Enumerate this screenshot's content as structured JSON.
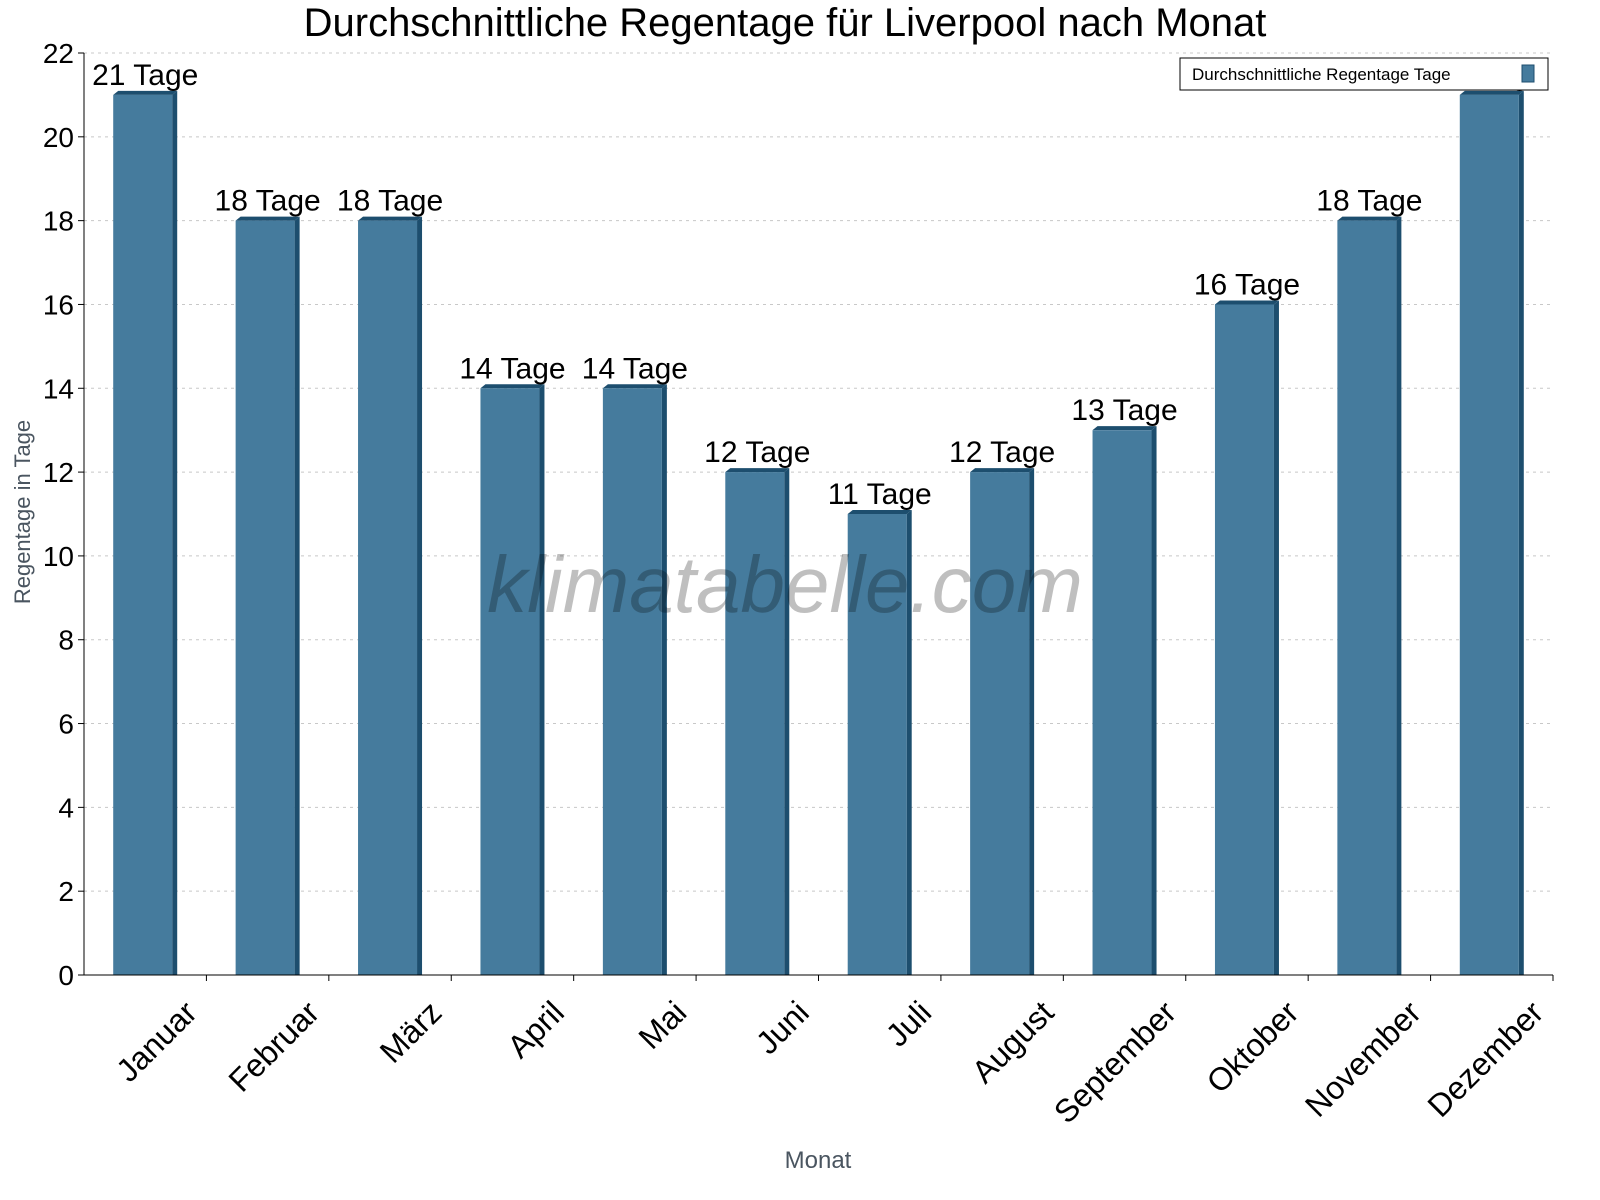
{
  "chart_data": {
    "type": "bar",
    "title": "Durchschnittliche Regentage für Liverpool nach Monat",
    "xlabel": "Monat",
    "ylabel": "Regentage in Tage",
    "categories": [
      "Januar",
      "Februar",
      "März",
      "April",
      "Mai",
      "Juni",
      "Juli",
      "August",
      "September",
      "Oktober",
      "November",
      "Dezember"
    ],
    "series": [
      {
        "name": "Durchschnittliche Regentage Tage",
        "values": [
          21,
          18,
          18,
          14,
          14,
          12,
          11,
          12,
          13,
          16,
          18,
          21
        ]
      }
    ],
    "data_labels": [
      "21 Tage",
      "18 Tage",
      "18 Tage",
      "14 Tage",
      "14 Tage",
      "12 Tage",
      "11 Tage",
      "12 Tage",
      "13 Tage",
      "16 Tage",
      "18 Tage",
      "21 Tage"
    ],
    "ylim": [
      0,
      22
    ],
    "yticks": [
      0,
      2,
      4,
      6,
      8,
      10,
      12,
      14,
      16,
      18,
      20,
      22
    ],
    "grid": true,
    "legend_position": "top-right",
    "bar_color": "#457b9d",
    "bar_side_color": "#1d4e6e",
    "watermark": "klimatabelle.com"
  }
}
